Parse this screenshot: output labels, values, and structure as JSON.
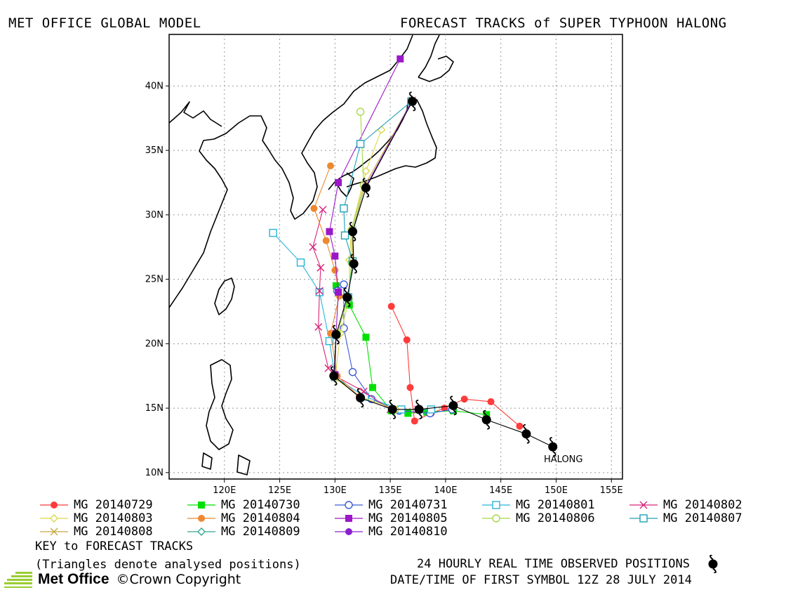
{
  "header": {
    "left_title": "MET OFFICE GLOBAL MODEL",
    "right_title": "FORECAST TRACKS of SUPER TYPHOON HALONG"
  },
  "map": {
    "lon_range": [
      115,
      156
    ],
    "lat_range": [
      9.5,
      44
    ],
    "lon_ticks": [
      120,
      125,
      130,
      135,
      140,
      145,
      150,
      155
    ],
    "lat_ticks": [
      10,
      15,
      20,
      25,
      30,
      35,
      40
    ],
    "lon_tick_labels": [
      "120E",
      "125E",
      "130E",
      "135E",
      "140E",
      "145E",
      "150E",
      "155E"
    ],
    "lat_tick_labels": [
      "10N",
      "15N",
      "20N",
      "25N",
      "30N",
      "35N",
      "40N"
    ],
    "storm_label": "HALONG",
    "grid": true
  },
  "observed": {
    "color": "#000000",
    "icon": "typhoon-icon",
    "points": [
      [
        149.7,
        12.0
      ],
      [
        147.3,
        13.0
      ],
      [
        143.7,
        14.1
      ],
      [
        140.7,
        15.2
      ],
      [
        137.6,
        14.9
      ],
      [
        135.2,
        14.9
      ],
      [
        132.3,
        15.8
      ],
      [
        129.9,
        17.5
      ],
      [
        130.1,
        20.7
      ],
      [
        131.1,
        23.6
      ],
      [
        131.7,
        26.2
      ],
      [
        131.6,
        28.7
      ],
      [
        132.8,
        32.1
      ],
      [
        137.0,
        38.8
      ]
    ]
  },
  "tracks": [
    {
      "label": "MG 20140729",
      "color": "#ff3b3b",
      "marker": "filled-circle",
      "points": [
        [
          146.7,
          13.6
        ],
        [
          144.1,
          15.5
        ],
        [
          141.7,
          15.7
        ],
        [
          139.9,
          15.0
        ],
        [
          138.7,
          14.6
        ],
        [
          137.2,
          14.0
        ],
        [
          136.8,
          16.6
        ],
        [
          136.5,
          20.3
        ],
        [
          135.1,
          22.9
        ]
      ]
    },
    {
      "label": "MG 20140730",
      "color": "#00e000",
      "marker": "filled-square",
      "points": [
        [
          143.7,
          14.5
        ],
        [
          140.7,
          14.8
        ],
        [
          138.3,
          14.7
        ],
        [
          136.6,
          14.6
        ],
        [
          135.1,
          14.8
        ],
        [
          133.4,
          16.6
        ],
        [
          132.8,
          20.5
        ],
        [
          131.3,
          23.0
        ],
        [
          130.1,
          24.5
        ]
      ]
    },
    {
      "label": "MG 20140731",
      "color": "#3a5ad6",
      "marker": "open-circle",
      "points": [
        [
          140.6,
          14.9
        ],
        [
          138.6,
          14.6
        ],
        [
          135.8,
          14.8
        ],
        [
          133.3,
          15.7
        ],
        [
          131.6,
          17.8
        ],
        [
          130.8,
          21.2
        ],
        [
          130.8,
          24.6
        ],
        [
          130.2,
          24.1
        ]
      ]
    },
    {
      "label": "MG 20140801",
      "color": "#2ab4d8",
      "marker": "open-square",
      "points": [
        [
          138.7,
          14.9
        ],
        [
          136.0,
          14.9
        ],
        [
          132.7,
          15.9
        ],
        [
          130.0,
          17.4
        ],
        [
          129.5,
          20.2
        ],
        [
          128.6,
          24.0
        ],
        [
          126.9,
          26.3
        ],
        [
          124.4,
          28.6
        ]
      ]
    },
    {
      "label": "MG 20140802",
      "color": "#d8247a",
      "marker": "cross",
      "points": [
        [
          137.5,
          14.9
        ],
        [
          135.0,
          14.9
        ],
        [
          132.6,
          16.3
        ],
        [
          130.0,
          17.5
        ],
        [
          129.4,
          18.1
        ],
        [
          128.5,
          21.3
        ],
        [
          128.6,
          24.1
        ],
        [
          128.7,
          25.9
        ],
        [
          128.0,
          27.5
        ],
        [
          128.9,
          30.4
        ]
      ]
    },
    {
      "label": "MG 20140803",
      "color": "#d9d94a",
      "marker": "open-diamond",
      "points": [
        [
          135.5,
          14.9
        ],
        [
          132.3,
          15.9
        ],
        [
          130.0,
          17.3
        ],
        [
          130.5,
          20.8
        ],
        [
          131.3,
          23.5
        ],
        [
          131.3,
          26.5
        ],
        [
          131.5,
          28.9
        ],
        [
          132.8,
          33.4
        ],
        [
          134.2,
          36.6
        ]
      ]
    },
    {
      "label": "MG 20140804",
      "color": "#ee8830",
      "marker": "filled-circle",
      "points": [
        [
          132.2,
          15.9
        ],
        [
          130.2,
          17.5
        ],
        [
          129.6,
          20.8
        ],
        [
          130.4,
          23.7
        ],
        [
          130.0,
          25.7
        ],
        [
          129.2,
          28.0
        ],
        [
          128.1,
          30.5
        ],
        [
          129.6,
          33.8
        ]
      ]
    },
    {
      "label": "MG 20140805",
      "color": "#9a18c8",
      "marker": "filled-square",
      "points": [
        [
          130.0,
          17.6
        ],
        [
          130.1,
          20.8
        ],
        [
          130.3,
          24.0
        ],
        [
          130.0,
          26.8
        ],
        [
          129.5,
          28.7
        ],
        [
          130.3,
          32.5
        ],
        [
          135.9,
          42.1
        ]
      ]
    },
    {
      "label": "MG 20140806",
      "color": "#a8d848",
      "marker": "open-circle",
      "points": [
        [
          130.2,
          20.8
        ],
        [
          131.2,
          23.5
        ],
        [
          131.5,
          26.3
        ],
        [
          131.5,
          28.8
        ],
        [
          132.6,
          32.3
        ],
        [
          132.3,
          38.0
        ]
      ]
    },
    {
      "label": "MG 20140807",
      "color": "#20a0b8",
      "marker": "open-square",
      "points": [
        [
          131.2,
          23.6
        ],
        [
          131.6,
          26.4
        ],
        [
          130.9,
          28.4
        ],
        [
          130.8,
          30.5
        ],
        [
          132.3,
          35.5
        ],
        [
          136.9,
          38.8
        ]
      ]
    },
    {
      "label": "MG 20140808",
      "color": "#c8a840",
      "marker": "cross",
      "points": [
        [
          131.6,
          26.3
        ],
        [
          131.6,
          28.8
        ],
        [
          132.7,
          32.3
        ],
        [
          137.0,
          38.9
        ]
      ]
    },
    {
      "label": "MG 20140809",
      "color": "#30a890",
      "marker": "open-diamond",
      "points": [
        [
          131.6,
          28.8
        ],
        [
          132.8,
          32.1
        ],
        [
          137.0,
          38.9
        ]
      ]
    },
    {
      "label": "MG 20140810",
      "color": "#8a20d0",
      "marker": "filled-circle",
      "points": [
        [
          132.8,
          32.2
        ],
        [
          137.0,
          38.9
        ]
      ]
    }
  ],
  "legend_columns": 5,
  "footer": {
    "key_title": "KEY to FORECAST TRACKS",
    "key_note": "(Triangles denote analysed positions)",
    "observed_note": "24 HOURLY REAL TIME OBSERVED POSITIONS",
    "first_symbol": "DATE/TIME OF FIRST SYMBOL 12Z 28 JULY 2014",
    "brand": "Met Office",
    "copyright": "©Crown Copyright"
  }
}
